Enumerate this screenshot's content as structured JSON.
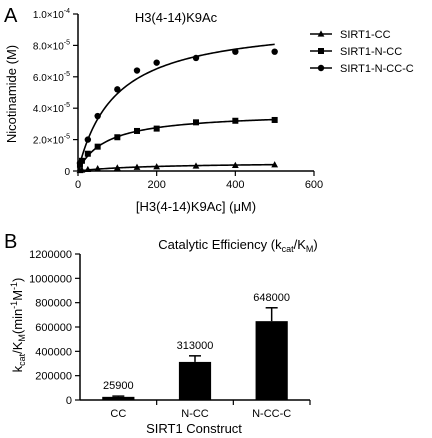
{
  "chart_data": [
    {
      "panel_label": "A",
      "type": "scatter",
      "title": "H3(4-14)K9Ac",
      "xlabel": "[H3(4-14)K9Ac] (μM)",
      "ylabel": "Nicotinamide (M)",
      "xlim": [
        0,
        600
      ],
      "ylim": [
        0,
        0.0001
      ],
      "x_ticks": [
        "0",
        "200",
        "400",
        "600"
      ],
      "y_ticks": [
        {
          "mant": "0",
          "exp": ""
        },
        {
          "mant": "2.0×10",
          "exp": "-5"
        },
        {
          "mant": "4.0×10",
          "exp": "-5"
        },
        {
          "mant": "6.0×10",
          "exp": "-5"
        },
        {
          "mant": "8.0×10",
          "exp": "-5"
        },
        {
          "mant": "1.0×10",
          "exp": "-4"
        }
      ],
      "legend_position": "top-right",
      "series": [
        {
          "name": "SIRT1-CC",
          "marker": "triangle",
          "x": [
            5,
            10,
            25,
            50,
            100,
            150,
            200,
            300,
            400,
            500
          ],
          "y": [
            3e-07,
            6e-07,
            1e-06,
            1.5e-06,
            2e-06,
            2.4e-06,
            2.7e-06,
            3.2e-06,
            3.6e-06,
            4e-06
          ],
          "fit": {
            "vmax": 5.5e-06,
            "km": 180
          }
        },
        {
          "name": "SIRT1-N-CC",
          "marker": "square",
          "x": [
            5,
            10,
            25,
            50,
            100,
            150,
            200,
            300,
            400,
            500
          ],
          "y": [
            4e-06,
            6.5e-06,
            1.1e-05,
            1.55e-05,
            2.15e-05,
            2.55e-05,
            2.7e-05,
            3.1e-05,
            3.2e-05,
            3.25e-05
          ],
          "fit": {
            "vmax": 3.75e-05,
            "km": 72
          }
        },
        {
          "name": "SIRT1-N-CC-C",
          "marker": "circle",
          "x": [
            5,
            25,
            50,
            100,
            150,
            200,
            300,
            400,
            500
          ],
          "y": [
            5e-06,
            2e-05,
            3.5e-05,
            5.2e-05,
            6.4e-05,
            6.9e-05,
            7.2e-05,
            7.6e-05,
            7.6e-05
          ],
          "fit": {
            "vmax": 9.6e-05,
            "km": 95
          }
        }
      ]
    },
    {
      "panel_label": "B",
      "type": "bar",
      "title": "Catalytic Efficiency (k",
      "title_sub1": "cat",
      "title_mid": "/K",
      "title_sub2": "M",
      "title_end": ")",
      "ylabel_parts": {
        "k": "k",
        "cat": "cat",
        "slashk": "/K",
        "m": "M",
        "units": "(min",
        "e1": "-1",
        "mid": "M",
        "e2": "-1",
        "close": ")"
      },
      "xlabel": "SIRT1 Construct",
      "ylim": [
        0,
        1200000
      ],
      "y_ticks": [
        "0",
        "200000",
        "400000",
        "600000",
        "800000",
        "1000000",
        "1200000"
      ],
      "categories": [
        "CC",
        "N-CC",
        "N-CC-C"
      ],
      "values": [
        25900,
        313000,
        648000
      ],
      "errors": [
        6000,
        50000,
        110000
      ],
      "data_labels": [
        "25900",
        "313000",
        "648000"
      ]
    }
  ]
}
